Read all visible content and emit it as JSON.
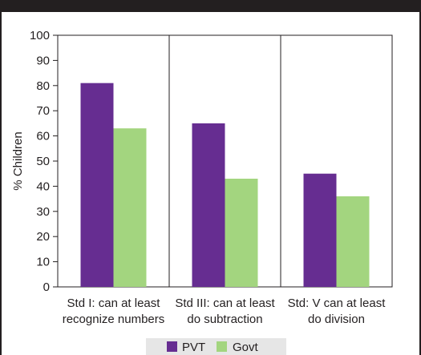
{
  "chart_data": {
    "type": "bar",
    "title": "",
    "xlabel": "",
    "ylabel": "% Children",
    "ylim": [
      0,
      100
    ],
    "yticks": [
      0,
      10,
      20,
      30,
      40,
      50,
      60,
      70,
      80,
      90,
      100
    ],
    "grid": false,
    "legend": "bottom",
    "categories": [
      [
        "Std I: can at least",
        "recognize numbers"
      ],
      [
        "Std III: can at least",
        "do subtraction"
      ],
      [
        "Std: V can at least",
        "do division"
      ]
    ],
    "series": [
      {
        "name": "PVT",
        "color": "#662d91",
        "values": [
          81,
          65,
          45
        ]
      },
      {
        "name": "Govt",
        "color": "#a3d57f",
        "values": [
          63,
          43,
          36
        ]
      }
    ]
  }
}
